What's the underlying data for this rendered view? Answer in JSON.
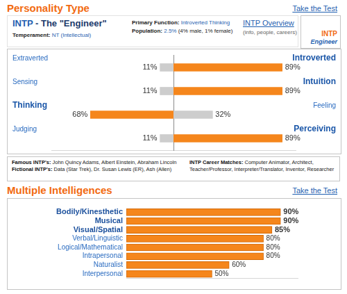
{
  "personality_section": {
    "title": "Personality Type",
    "link": "Take the Test"
  },
  "type_box": {
    "code": "INTP",
    "title": "- The \"Engineer\"",
    "temperament_label": "Temperament:",
    "temperament": "NT (Intellectual)",
    "primary_function_label": "Primary Function:",
    "primary_function": "Introverted Thinking",
    "population_label": "Population:",
    "population": "2.5%",
    "population_note": "(4% male, 1% female)",
    "overview_link": "INTP Overview",
    "overview_note": "(info, people, careers)",
    "badge": [
      "INTP",
      "Engineer"
    ]
  },
  "chart_data": [
    {
      "type": "bar",
      "orientation": "horizontal",
      "data_labels": true,
      "tick_labels": false,
      "xlim": [
        0,
        100
      ],
      "left": {
        "categories": [
          "Extraverted",
          "Sensing",
          "Thinking",
          "Judging"
        ],
        "values": [
          11,
          11,
          68,
          11
        ],
        "value_labels": [
          "11%",
          "11%",
          "68%",
          "11%"
        ],
        "colors": [
          "#cdcdcd",
          "#cdcdcd",
          "#f5861c",
          "#cdcdcd"
        ]
      },
      "right": {
        "categories": [
          "Introverted",
          "Intuition",
          "Feeling",
          "Perceiving"
        ],
        "values": [
          89,
          89,
          32,
          89
        ],
        "value_labels": [
          "89%",
          "89%",
          "32%",
          "89%"
        ],
        "colors": [
          "#f5861c",
          "#f5861c",
          "#cdcdcd",
          "#f5861c"
        ]
      }
    },
    {
      "type": "bar",
      "orientation": "horizontal",
      "title": "Multiple Intelligences",
      "data_labels": true,
      "tick_labels": "y",
      "categories": [
        "Bodily/Kinesthetic",
        "Musical",
        "Visual/Spatial",
        "Verbal/Linguistic",
        "Logical/Mathematical",
        "Intrapersonal",
        "Naturalist",
        "Interpersonal"
      ],
      "values": [
        90,
        90,
        85,
        80,
        80,
        80,
        60,
        50
      ],
      "value_labels": [
        "90%",
        "90%",
        "85%",
        "80%",
        "80%",
        "80%",
        "60%",
        "50%"
      ],
      "color": "#f5861c",
      "xlim": [
        0,
        100
      ]
    }
  ],
  "famous": {
    "famous_label": "Famous INTP's:",
    "famous": "John Quincy Adams, Albert Einstein, Abraham Lincoln",
    "fictional_label": "Fictional INTP's:",
    "fictional": "Data (Star Trek), Dr. Susan Lewis (ER), Ash (Allen)",
    "careers_label": "INTP Career Matches:",
    "careers": "Computer Animator, Architect, Teacher/Professor, Interpreter/Translator, Inventor, Researcher"
  },
  "intelligence_section": {
    "link": "Take the Test"
  }
}
